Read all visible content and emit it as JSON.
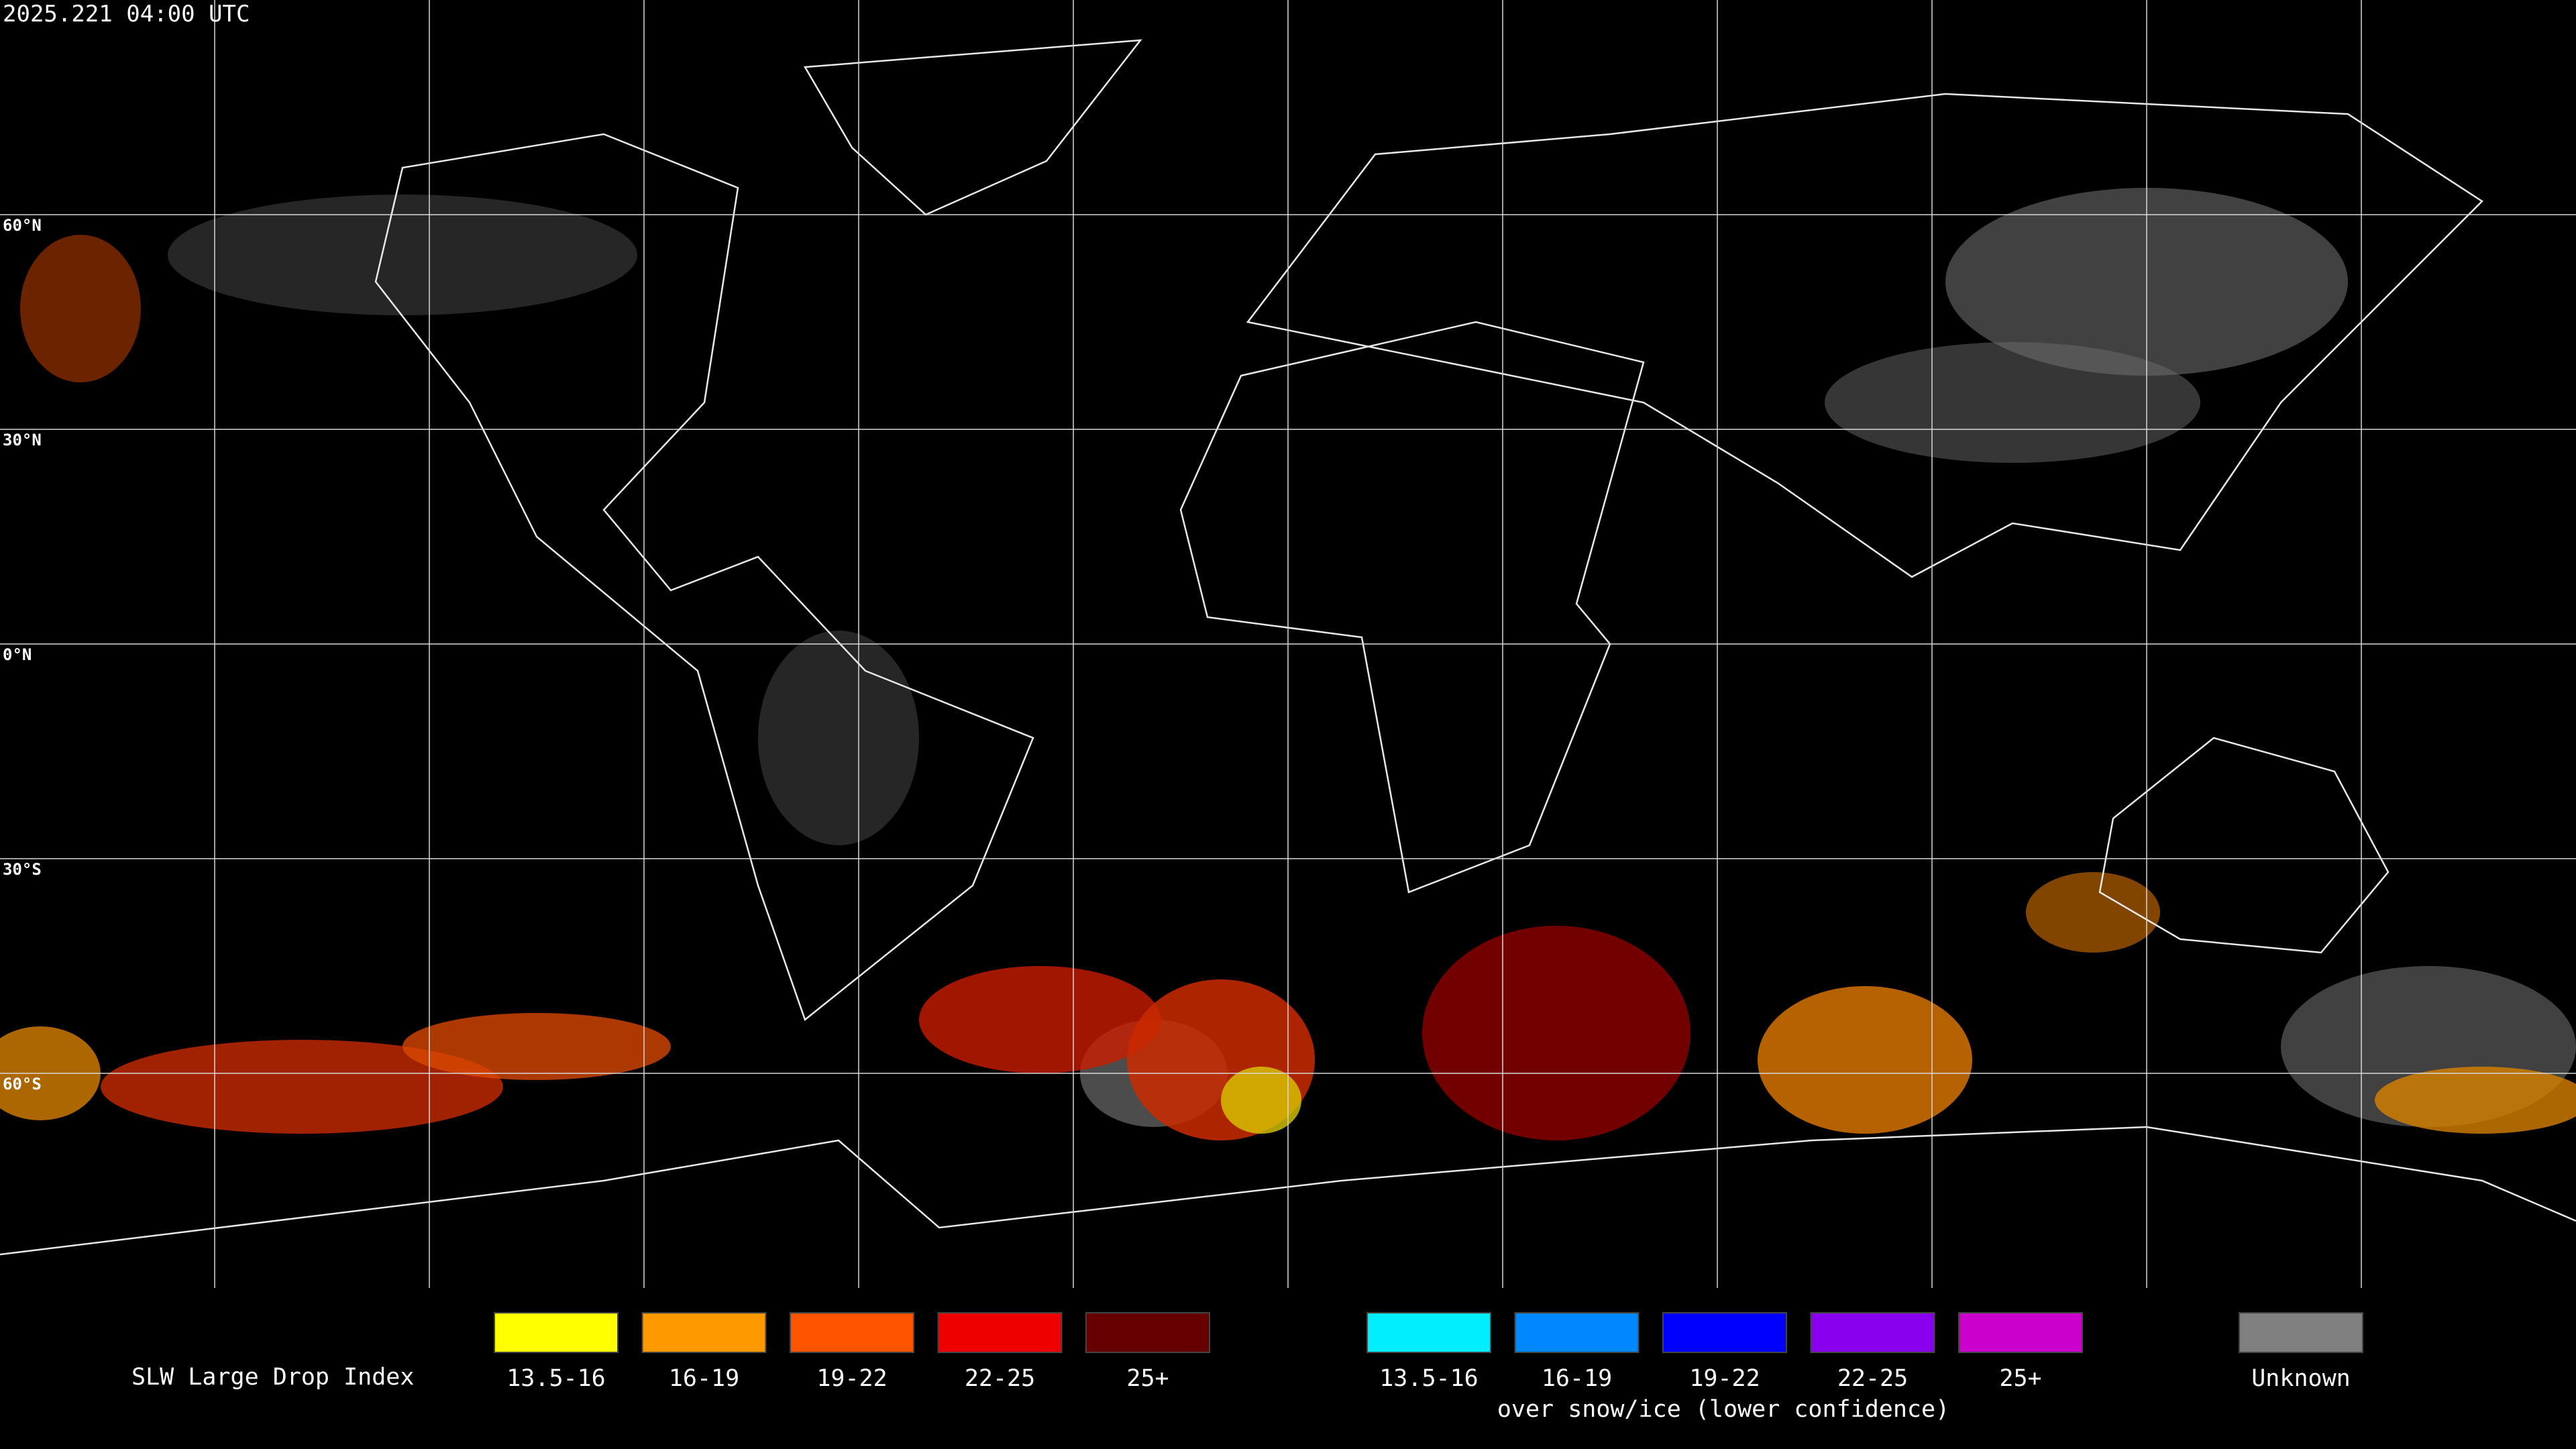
{
  "header": {
    "title": "2025.221 04:00 UTC"
  },
  "map": {
    "latitude_labels": [
      "60°N",
      "30°N",
      "0°N",
      "30°S",
      "60°S"
    ]
  },
  "legend": {
    "title": "SLW Large Drop Index",
    "main": [
      {
        "label": "13.5-16",
        "color": "#ffff00"
      },
      {
        "label": "16-19",
        "color": "#ff9900"
      },
      {
        "label": "19-22",
        "color": "#ff5500"
      },
      {
        "label": "22-25",
        "color": "#ee0000"
      },
      {
        "label": "25+",
        "color": "#660000"
      }
    ],
    "snow_ice": {
      "note": "over snow/ice (lower confidence)",
      "items": [
        {
          "label": "13.5-16",
          "color": "#00eeff"
        },
        {
          "label": "16-19",
          "color": "#0088ff"
        },
        {
          "label": "19-22",
          "color": "#0000ff"
        },
        {
          "label": "22-25",
          "color": "#8800ee"
        },
        {
          "label": "25+",
          "color": "#cc00cc"
        }
      ]
    },
    "unknown": {
      "label": "Unknown",
      "color": "#808080"
    }
  }
}
